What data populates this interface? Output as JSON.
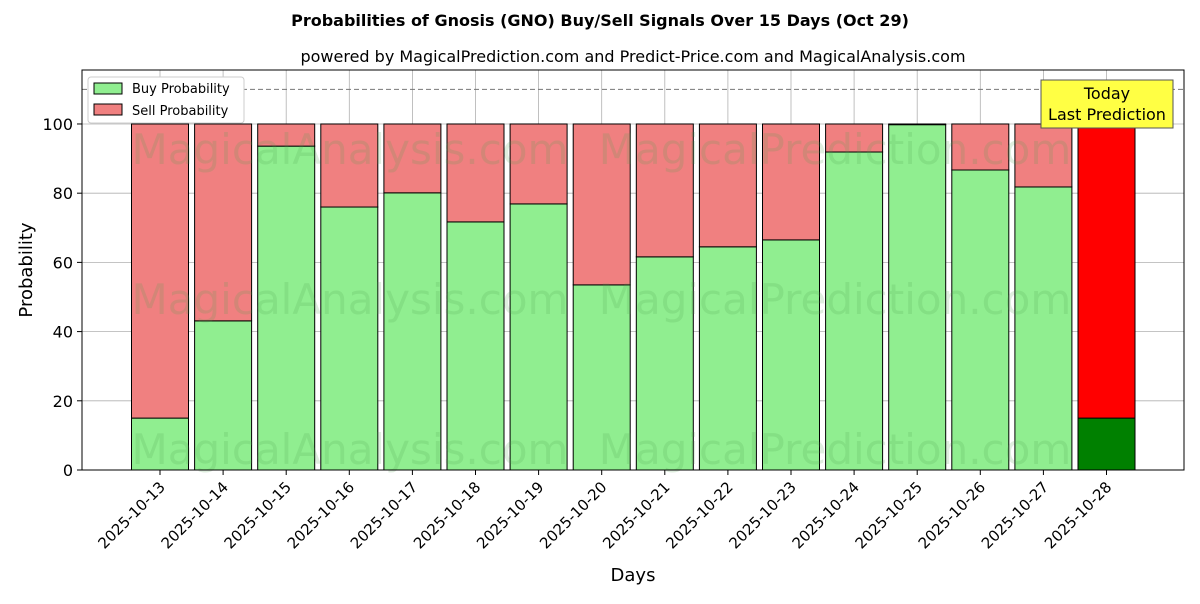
{
  "chart_data": {
    "type": "bar",
    "stacked": true,
    "title": "Probabilities of Gnosis (GNO) Buy/Sell Signals Over 15 Days (Oct 29)",
    "subtitle": "powered by MagicalPrediction.com and Predict-Price.com and MagicalAnalysis.com",
    "xlabel": "Days",
    "ylabel": "Probability",
    "ylim": [
      0,
      115.6
    ],
    "yticks": [
      0,
      20,
      40,
      60,
      80,
      100
    ],
    "grid": true,
    "legend_position": "top-left",
    "reference_line": 110,
    "categories": [
      "2025-10-13",
      "2025-10-14",
      "2025-10-15",
      "2025-10-16",
      "2025-10-17",
      "2025-10-18",
      "2025-10-19",
      "2025-10-20",
      "2025-10-21",
      "2025-10-22",
      "2025-10-23",
      "2025-10-24",
      "2025-10-25",
      "2025-10-26",
      "2025-10-27",
      "2025-10-28"
    ],
    "series": [
      {
        "name": "Buy Probability",
        "color": "#90ee90",
        "values": [
          15.0,
          43.1,
          93.6,
          76.0,
          80.1,
          71.7,
          76.9,
          53.5,
          61.6,
          64.5,
          66.5,
          91.9,
          99.8,
          86.7,
          81.8,
          15.0
        ]
      },
      {
        "name": "Sell Probability",
        "color": "#f08080",
        "values": [
          85.0,
          56.9,
          6.4,
          24.0,
          19.9,
          28.3,
          23.1,
          46.5,
          38.4,
          35.5,
          33.5,
          8.1,
          0.2,
          13.3,
          18.2,
          85.0
        ]
      }
    ],
    "highlight": {
      "index": 15,
      "buy_color": "#008000",
      "sell_color": "#ff0000"
    },
    "annotation": {
      "line1": "Today",
      "line2": "Last Prediction",
      "color": "#ffff44"
    },
    "watermarks": [
      "MagicalAnalysis.com",
      "MagicalPrediction.com"
    ]
  }
}
